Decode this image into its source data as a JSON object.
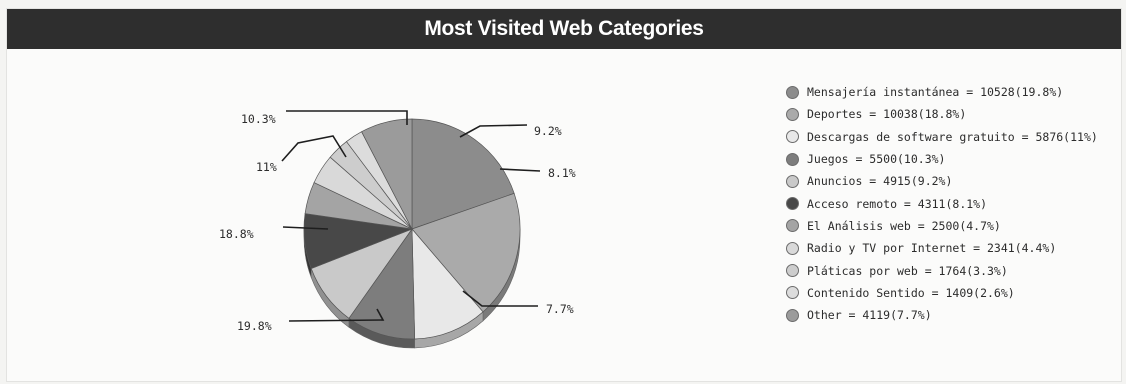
{
  "header": {
    "title": "Most Visited Web Categories"
  },
  "colors": {
    "header_bg": "#2e2e2e",
    "header_text": "#ffffff"
  },
  "chart_data": {
    "type": "pie",
    "title": "Most Visited Web Categories",
    "legend_position": "right",
    "slices": [
      {
        "label": "Mensajería instantánea",
        "value": 10528,
        "percent": 19.8,
        "display_percent": "19.8%",
        "legend": "Mensajería instantánea = 10528(19.8%)",
        "color": "#8c8c8c"
      },
      {
        "label": "Deportes",
        "value": 10038,
        "percent": 18.8,
        "display_percent": "18.8%",
        "legend": "Deportes = 10038(18.8%)",
        "color": "#aaaaaa"
      },
      {
        "label": "Descargas de software gratuito",
        "value": 5876,
        "percent": 11,
        "display_percent": "11%",
        "legend": "Descargas de software gratuito = 5876(11%)",
        "color": "#e8e8e8"
      },
      {
        "label": "Juegos",
        "value": 5500,
        "percent": 10.3,
        "display_percent": "10.3%",
        "legend": "Juegos = 5500(10.3%)",
        "color": "#7d7d7d"
      },
      {
        "label": "Anuncios",
        "value": 4915,
        "percent": 9.2,
        "display_percent": "9.2%",
        "legend": "Anuncios = 4915(9.2%)",
        "color": "#c9c9c9"
      },
      {
        "label": "Acceso remoto",
        "value": 4311,
        "percent": 8.1,
        "display_percent": "8.1%",
        "legend": "Acceso remoto = 4311(8.1%)",
        "color": "#484848"
      },
      {
        "label": "El Análisis web",
        "value": 2500,
        "percent": 4.7,
        "display_percent": "",
        "legend": "El Análisis web = 2500(4.7%)",
        "color": "#a4a4a4"
      },
      {
        "label": "Radio y TV por Internet",
        "value": 2341,
        "percent": 4.4,
        "display_percent": "",
        "legend": "Radio y TV por Internet = 2341(4.4%)",
        "color": "#d9d9d9"
      },
      {
        "label": "Pláticas por web",
        "value": 1764,
        "percent": 3.3,
        "display_percent": "",
        "legend": "Pláticas por web = 1764(3.3%)",
        "color": "#cdcdcd"
      },
      {
        "label": "Contenido Sentido",
        "value": 1409,
        "percent": 2.6,
        "display_percent": "",
        "legend": "Contenido Sentido = 1409(2.6%)",
        "color": "#dcdcdc"
      },
      {
        "label": "Other",
        "value": 4119,
        "percent": 7.7,
        "display_percent": "7.7%",
        "legend": "Other = 4119(7.7%)",
        "color": "#9b9b9b"
      }
    ]
  }
}
